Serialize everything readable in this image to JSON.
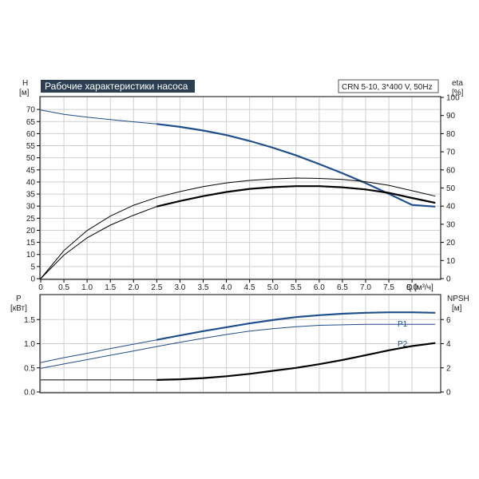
{
  "chart_data": [
    {
      "type": "line",
      "title": "Рабочие характеристики насоса",
      "legend_text": "CRN 5-10, 3*400 V, 50Hz",
      "xlabel": "Q [м³/ч]",
      "xlabel_main": "Q",
      "xlabel_unit": "[м³/ч]",
      "ylabel_left": "H",
      "ylabel_left_unit": "[м]",
      "ylabel_right": "eta",
      "ylabel_right_unit": "[%]",
      "xlim": [
        0,
        8.6
      ],
      "ylim_left": [
        0,
        75
      ],
      "ylim_right": [
        0,
        100
      ],
      "grid": true,
      "x_ticks": [
        "0",
        "0.5",
        "1.0",
        "1.5",
        "2.0",
        "2.5",
        "3.0",
        "3.5",
        "4.0",
        "4.5",
        "5.0",
        "5.5",
        "6.0",
        "6.5",
        "7.0",
        "7.5",
        "8.0"
      ],
      "y_ticks_left": [
        "0",
        "5",
        "10",
        "15",
        "20",
        "25",
        "30",
        "35",
        "40",
        "45",
        "50",
        "55",
        "60",
        "65",
        "70"
      ],
      "y_ticks_right": [
        "0",
        "10",
        "20",
        "30",
        "40",
        "50",
        "60",
        "70",
        "80",
        "90",
        "100"
      ],
      "series": [
        {
          "axis": "left",
          "color": "#1f4e8c",
          "x": [
            0,
            0.5,
            1.0,
            1.5,
            2.0,
            2.5,
            3.0,
            3.5,
            4.0,
            4.5,
            5.0,
            5.5,
            6.0,
            6.5,
            7.0,
            7.5,
            8.0,
            8.5
          ],
          "y": [
            69.8,
            68.0,
            66.8,
            65.8,
            64.9,
            64.0,
            62.8,
            61.3,
            59.4,
            57.0,
            54.2,
            51.0,
            47.4,
            43.6,
            39.5,
            35.1,
            30.5,
            29.8
          ],
          "bold_from": 2.5
        },
        {
          "axis": "right",
          "color": "#000000",
          "x": [
            0,
            0.5,
            1.0,
            1.5,
            2.0,
            2.5,
            3.0,
            3.5,
            4.0,
            4.5,
            5.0,
            5.5,
            6.0,
            6.5,
            7.0,
            7.5,
            8.0,
            8.5
          ],
          "y": [
            0,
            15.5,
            26.5,
            34.5,
            40.5,
            44.8,
            48.0,
            50.8,
            52.8,
            54.2,
            55.0,
            55.5,
            55.3,
            54.7,
            53.5,
            51.5,
            48.5,
            45.5
          ]
        },
        {
          "axis": "right",
          "color": "#000000",
          "x": [
            0,
            0.5,
            1.0,
            1.5,
            2.0,
            2.5,
            3.0,
            3.5,
            4.0,
            4.5,
            5.0,
            5.5,
            6.0,
            6.5,
            7.0,
            7.5,
            8.0,
            8.5
          ],
          "y": [
            0,
            13.0,
            22.5,
            29.5,
            35.0,
            39.8,
            42.8,
            45.5,
            47.8,
            49.5,
            50.5,
            51.0,
            51.0,
            50.4,
            49.2,
            47.3,
            44.5,
            41.8
          ],
          "bold_from": 2.5
        }
      ]
    },
    {
      "type": "line",
      "ylabel_left": "P",
      "ylabel_left_unit": "[кВт]",
      "ylabel_right": "NPSH",
      "ylabel_right_unit": "[м]",
      "xlim": [
        0,
        8.6
      ],
      "ylim_left": [
        0,
        2.0
      ],
      "ylim_right": [
        0,
        8
      ],
      "grid": true,
      "y_ticks_left": [
        "0.0",
        "0.5",
        "1.0",
        "1.5"
      ],
      "y_ticks_right": [
        "0",
        "2",
        "4",
        "6"
      ],
      "series": [
        {
          "name": "P1",
          "axis": "left",
          "color": "#1f4e8c",
          "x": [
            0,
            0.5,
            1.0,
            1.5,
            2.0,
            2.5,
            3.0,
            3.5,
            4.0,
            4.5,
            5.0,
            5.5,
            6.0,
            6.5,
            7.0,
            7.5,
            8.0,
            8.5
          ],
          "y": [
            0.61,
            0.71,
            0.8,
            0.9,
            0.99,
            1.08,
            1.17,
            1.26,
            1.34,
            1.42,
            1.49,
            1.55,
            1.59,
            1.62,
            1.64,
            1.65,
            1.65,
            1.64
          ],
          "bold_from": 2.5
        },
        {
          "name": "P2",
          "axis": "left",
          "color": "#1f4e8c",
          "x": [
            0,
            0.5,
            1.0,
            1.5,
            2.0,
            2.5,
            3.0,
            3.5,
            4.0,
            4.5,
            5.0,
            5.5,
            6.0,
            6.5,
            7.0,
            7.5,
            8.0,
            8.5
          ],
          "y": [
            0.49,
            0.58,
            0.67,
            0.76,
            0.85,
            0.94,
            1.03,
            1.11,
            1.19,
            1.26,
            1.31,
            1.35,
            1.38,
            1.39,
            1.4,
            1.4,
            1.4,
            1.4
          ]
        },
        {
          "axis": "right",
          "color": "#000000",
          "x": [
            0,
            0.5,
            1.0,
            1.5,
            2.0,
            2.5,
            3.0,
            3.5,
            4.0,
            4.5,
            5.0,
            5.5,
            6.0,
            6.5,
            7.0,
            7.5,
            8.0,
            8.5
          ],
          "y": [
            1.0,
            1.0,
            1.0,
            1.0,
            1.0,
            1.0,
            1.05,
            1.15,
            1.3,
            1.5,
            1.75,
            2.0,
            2.3,
            2.65,
            3.05,
            3.45,
            3.8,
            4.05
          ],
          "bold_from": 2.5
        }
      ]
    }
  ]
}
